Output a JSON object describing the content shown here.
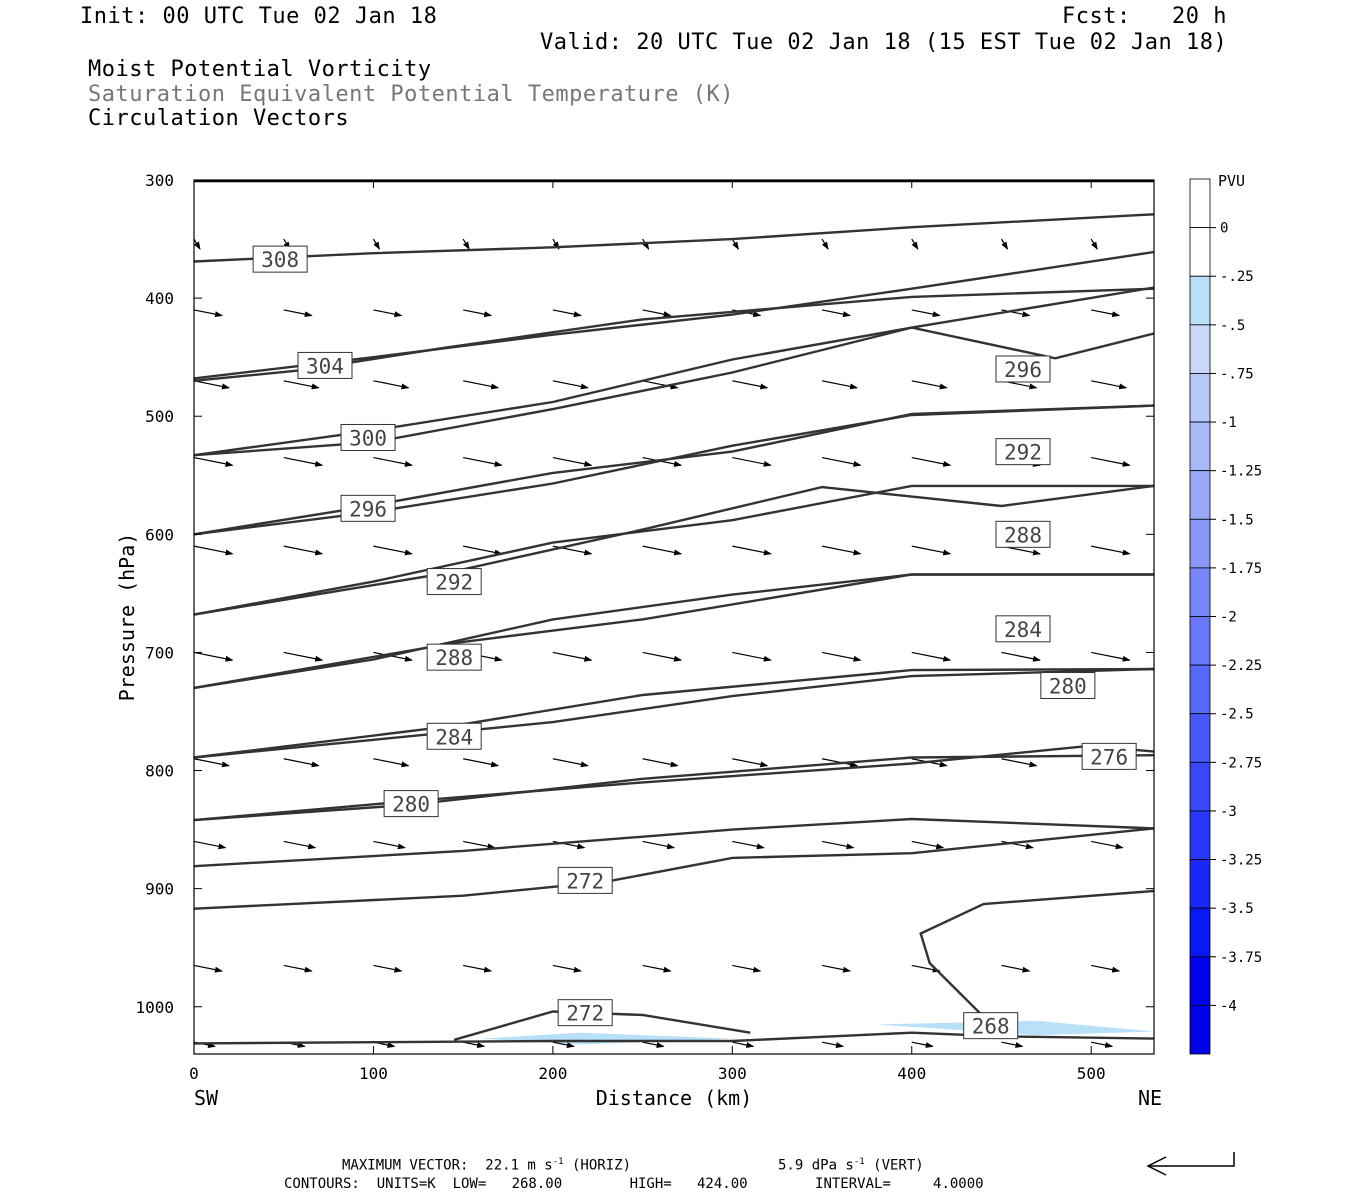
{
  "header": {
    "init": "Init: 00 UTC Tue 02 Jan 18",
    "fcst": "Fcst:   20 h",
    "valid": "Valid: 20 UTC Tue 02 Jan 18 (15 EST Tue 02 Jan 18)",
    "field1": "Moist Potential Vorticity",
    "field2": "Saturation Equivalent Potential Temperature (K)",
    "field3": "Circulation Vectors"
  },
  "chart_data": {
    "type": "cross-section",
    "xlabel": "Distance (km)",
    "ylabel": "Pressure (hPa)",
    "x_range": [
      0,
      535
    ],
    "y_range": [
      300,
      1040
    ],
    "log_pressure": false,
    "x_ticks": [
      0,
      100,
      200,
      300,
      400,
      500
    ],
    "y_ticks": [
      300,
      400,
      500,
      600,
      700,
      800,
      900,
      1000
    ],
    "x_end_labels": {
      "left": "SW",
      "right": "NE"
    },
    "contour_color": "#333333",
    "contours": [
      {
        "label": "308",
        "points": [
          [
            0,
            369
          ],
          [
            100,
            362
          ],
          [
            200,
            357
          ],
          [
            300,
            350
          ],
          [
            400,
            340
          ],
          [
            535,
            329
          ]
        ],
        "label_at": [
          48,
          367
        ]
      },
      {
        "label": "",
        "points": [
          [
            0,
            468
          ],
          [
            100,
            450
          ],
          [
            200,
            431
          ],
          [
            300,
            414
          ],
          [
            400,
            392
          ],
          [
            535,
            361
          ]
        ]
      },
      {
        "label": "304",
        "points": [
          [
            0,
            470
          ],
          [
            60,
            461
          ],
          [
            140,
            442
          ],
          [
            250,
            418
          ],
          [
            400,
            399
          ],
          [
            535,
            392
          ]
        ],
        "label_at": [
          73,
          457
        ]
      },
      {
        "label": "296",
        "points": [
          [
            0,
            533
          ],
          [
            100,
            512
          ],
          [
            200,
            488
          ],
          [
            300,
            452
          ],
          [
            400,
            425
          ],
          [
            480,
            451
          ],
          [
            535,
            430
          ]
        ],
        "label_at": [
          462,
          460
        ]
      },
      {
        "label": "300",
        "points": [
          [
            0,
            533
          ],
          [
            100,
            522
          ],
          [
            200,
            494
          ],
          [
            300,
            463
          ],
          [
            400,
            425
          ],
          [
            535,
            391
          ]
        ],
        "label_at": [
          97,
          518
        ]
      },
      {
        "label": "292",
        "points": [
          [
            0,
            600
          ],
          [
            100,
            581
          ],
          [
            200,
            557
          ],
          [
            300,
            525
          ],
          [
            400,
            499
          ],
          [
            535,
            491
          ]
        ],
        "label_at": [
          462,
          530
        ]
      },
      {
        "label": "296",
        "points": [
          [
            0,
            600
          ],
          [
            90,
            578
          ],
          [
            200,
            548
          ],
          [
            300,
            530
          ],
          [
            400,
            498
          ],
          [
            535,
            491
          ]
        ],
        "label_at": [
          97,
          578
        ]
      },
      {
        "label": "288",
        "points": [
          [
            0,
            668
          ],
          [
            100,
            640
          ],
          [
            200,
            607
          ],
          [
            300,
            588
          ],
          [
            400,
            559
          ],
          [
            535,
            559
          ]
        ],
        "label_at": [
          462,
          600
        ]
      },
      {
        "label": "292",
        "points": [
          [
            0,
            668
          ],
          [
            140,
            633
          ],
          [
            250,
            596
          ],
          [
            350,
            560
          ],
          [
            450,
            576
          ],
          [
            535,
            559
          ]
        ],
        "label_at": [
          145,
          640
        ]
      },
      {
        "label": "284",
        "points": [
          [
            0,
            730
          ],
          [
            100,
            706
          ],
          [
            200,
            672
          ],
          [
            300,
            651
          ],
          [
            400,
            634
          ],
          [
            535,
            634
          ]
        ],
        "label_at": [
          462,
          680
        ]
      },
      {
        "label": "288",
        "points": [
          [
            0,
            730
          ],
          [
            145,
            692
          ],
          [
            250,
            672
          ],
          [
            400,
            634
          ],
          [
            535,
            634
          ]
        ],
        "label_at": [
          145,
          704
        ]
      },
      {
        "label": "280",
        "points": [
          [
            0,
            789
          ],
          [
            100,
            774
          ],
          [
            200,
            759
          ],
          [
            300,
            737
          ],
          [
            400,
            720
          ],
          [
            535,
            714
          ]
        ],
        "label_at": [
          487,
          728
        ]
      },
      {
        "label": "284",
        "points": [
          [
            0,
            789
          ],
          [
            145,
            762
          ],
          [
            250,
            736
          ],
          [
            400,
            715
          ],
          [
            535,
            714
          ]
        ],
        "label_at": [
          145,
          771
        ]
      },
      {
        "label": "276",
        "points": [
          [
            0,
            842
          ],
          [
            120,
            829
          ],
          [
            250,
            807
          ],
          [
            400,
            789
          ],
          [
            535,
            787
          ]
        ],
        "label_at": [
          510,
          788
        ]
      },
      {
        "label": "280",
        "points": [
          [
            0,
            842
          ],
          [
            120,
            826
          ],
          [
            250,
            810
          ],
          [
            400,
            794
          ],
          [
            500,
            779
          ],
          [
            535,
            784
          ]
        ],
        "label_at": [
          121,
          828
        ]
      },
      {
        "label": "",
        "points": [
          [
            0,
            881
          ],
          [
            150,
            868
          ],
          [
            300,
            850
          ],
          [
            400,
            841
          ],
          [
            535,
            849
          ]
        ]
      },
      {
        "label": "272",
        "points": [
          [
            0,
            917
          ],
          [
            150,
            906
          ],
          [
            230,
            894
          ],
          [
            300,
            874
          ],
          [
            400,
            870
          ],
          [
            535,
            849
          ]
        ],
        "label_at": [
          218,
          893
        ]
      },
      {
        "label": "268",
        "points": [
          [
            0,
            1031
          ],
          [
            100,
            1030
          ],
          [
            200,
            1029
          ],
          [
            300,
            1029
          ],
          [
            400,
            1022
          ],
          [
            450,
            1025
          ],
          [
            535,
            1027
          ]
        ],
        "label_at": [
          444,
          1016
        ]
      },
      {
        "label": "272",
        "points": [
          [
            145,
            1028
          ],
          [
            200,
            1004
          ],
          [
            250,
            1007
          ],
          [
            310,
            1022
          ]
        ],
        "label_at": [
          218,
          1005
        ]
      },
      {
        "label": "",
        "points": [
          [
            443,
            1013
          ],
          [
            410,
            963
          ],
          [
            405,
            938
          ],
          [
            440,
            913
          ],
          [
            535,
            902
          ]
        ]
      }
    ],
    "vector_rows_hpa": [
      350,
      410,
      470,
      535,
      610,
      700,
      790,
      860,
      965,
      1030
    ],
    "vector_x_km": [
      0,
      50,
      100,
      150,
      200,
      250,
      300,
      350,
      400,
      450,
      500
    ],
    "vector_lengths": [
      0.02,
      0.4,
      0.5,
      0.55,
      0.55,
      0.55,
      0.5,
      0.45,
      0.4,
      0.3
    ],
    "pv_shading_color": "#b8e0f8",
    "colorbar": {
      "units": "PVU",
      "levels": [
        "0",
        "-.25",
        "-.5",
        "-.75",
        "-1",
        "-1.25",
        "-1.5",
        "-1.75",
        "-2",
        "-2.25",
        "-2.5",
        "-2.75",
        "-3",
        "-3.25",
        "-3.5",
        "-3.75",
        "-4"
      ],
      "colors": [
        "#ffffff",
        "#ffffff",
        "#b8e0f8",
        "#c8d8f8",
        "#b8c8f8",
        "#a8b8f8",
        "#98a8f8",
        "#8898f8",
        "#7888f8",
        "#6878f8",
        "#5868f8",
        "#4858f8",
        "#3848f8",
        "#2838f8",
        "#1828f8",
        "#0818f8",
        "#0000f0",
        "#0000e8"
      ]
    }
  },
  "footer": {
    "max_vector": "MAXIMUM VECTOR:  22.1 m s",
    "horiz": "(HORIZ)",
    "vert_val": "5.9 dPa s",
    "vert": "(VERT)",
    "exp": "-1",
    "contours": "CONTOURS:  UNITS=K  LOW=   268.00        HIGH=   424.00        INTERVAL=     4.0000"
  }
}
